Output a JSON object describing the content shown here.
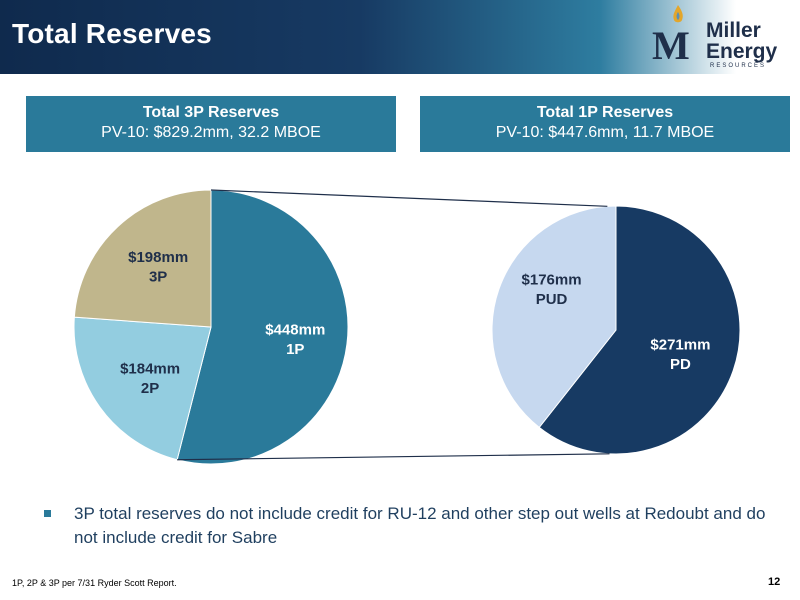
{
  "header": {
    "title": "Total Reserves"
  },
  "logo": {
    "word1": "Miller",
    "word2": "Energy",
    "sub": "RESOURCES"
  },
  "boxes": {
    "total3p": {
      "title": "Total 3P Reserves",
      "subtitle": "PV-10: $829.2mm, 32.2 MBOE"
    },
    "total1p": {
      "title": "Total 1P Reserves",
      "subtitle": "PV-10: $447.6mm, 11.7 MBOE"
    }
  },
  "chart_data": [
    {
      "type": "pie",
      "slices": [
        {
          "label_value": "$448mm",
          "label_name": "1P",
          "value": 448,
          "color": "#2a7a9a",
          "label_color": "#ffffff"
        },
        {
          "label_value": "$184mm",
          "label_name": "2P",
          "value": 184,
          "color": "#93cde0",
          "label_color": "#1f2f4a"
        },
        {
          "label_value": "$198mm",
          "label_name": "3P",
          "value": 198,
          "color": "#c0b68c",
          "label_color": "#1f2f4a"
        }
      ]
    },
    {
      "type": "pie",
      "slices": [
        {
          "label_value": "$271mm",
          "label_name": "PD",
          "value": 271,
          "color": "#173a63",
          "label_color": "#ffffff"
        },
        {
          "label_value": "$176mm",
          "label_name": "PUD",
          "value": 176,
          "color": "#c6d8ef",
          "label_color": "#1f2f4a"
        }
      ]
    }
  ],
  "bullet": {
    "text": "3P total reserves do not include credit for RU-12 and other step out wells at Redoubt and do not include credit for Sabre"
  },
  "footer": {
    "note": "1P, 2P & 3P per 7/31 Ryder Scott Report.",
    "page": "12"
  },
  "colors": {
    "accent": "#2a7a9a",
    "navy": "#173a63"
  }
}
